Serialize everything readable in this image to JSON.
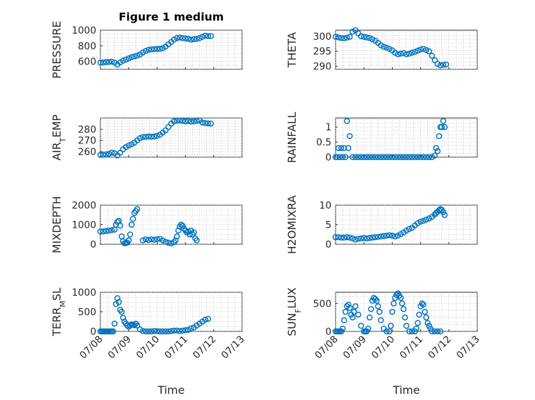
{
  "chart_data": {
    "title": "Figure 1 medium",
    "x_tick_labels": [
      "07/08",
      "07/09",
      "07/10",
      "07/11",
      "07/12",
      "07/13"
    ],
    "x_tick_values": [
      8,
      9,
      10,
      11,
      12,
      13
    ],
    "xlabel": "Time",
    "marker_color": "#0072BD",
    "panels": [
      {
        "type": "scatter",
        "ylabel": "PRESSURE",
        "ylim": [
          500,
          1000
        ],
        "yticks": [
          600,
          800,
          1000
        ],
        "grid": true,
        "x": [
          8.0,
          8.1,
          8.2,
          8.3,
          8.4,
          8.5,
          8.6,
          8.7,
          8.8,
          8.9,
          9.0,
          9.1,
          9.2,
          9.3,
          9.4,
          9.5,
          9.6,
          9.7,
          9.8,
          9.9,
          10.0,
          10.1,
          10.2,
          10.3,
          10.4,
          10.5,
          10.6,
          10.7,
          10.8,
          10.9,
          11.0,
          11.1,
          11.2,
          11.3,
          11.4,
          11.5,
          11.6,
          11.7,
          11.8,
          11.9
        ],
        "y": [
          585,
          588,
          592,
          595,
          598,
          585,
          560,
          590,
          610,
          625,
          640,
          655,
          665,
          675,
          690,
          715,
          735,
          750,
          755,
          758,
          760,
          762,
          770,
          790,
          820,
          850,
          880,
          900,
          905,
          900,
          895,
          890,
          880,
          885,
          890,
          900,
          915,
          930,
          925,
          925
        ]
      },
      {
        "type": "scatter",
        "ylabel": "THETA",
        "ylim": [
          289,
          302
        ],
        "yticks": [
          290,
          295,
          300
        ],
        "grid": true,
        "x": [
          8.0,
          8.1,
          8.2,
          8.3,
          8.4,
          8.5,
          8.6,
          8.7,
          8.8,
          8.9,
          9.0,
          9.1,
          9.2,
          9.3,
          9.4,
          9.5,
          9.6,
          9.7,
          9.8,
          9.9,
          10.0,
          10.1,
          10.2,
          10.3,
          10.4,
          10.5,
          10.6,
          10.7,
          10.8,
          10.9,
          11.0,
          11.1,
          11.2,
          11.3,
          11.4,
          11.5,
          11.6,
          11.7,
          11.8,
          11.9
        ],
        "y": [
          299.8,
          299.6,
          299.4,
          299.3,
          299.5,
          299.8,
          301.5,
          302.0,
          301.0,
          300.0,
          299.8,
          299.6,
          299.4,
          299.0,
          298.5,
          297.8,
          297.0,
          296.5,
          296.2,
          295.8,
          295.3,
          294.5,
          294.0,
          294.2,
          294.4,
          294.0,
          294.2,
          294.5,
          294.8,
          295.2,
          295.6,
          295.8,
          295.4,
          295.0,
          293.5,
          292.0,
          290.8,
          290.3,
          290.5,
          290.6
        ]
      },
      {
        "type": "scatter",
        "ylabel": "AIR_TEMP",
        "ylim": [
          255,
          290
        ],
        "yticks": [
          260,
          270,
          280
        ],
        "grid": true,
        "x": [
          8.0,
          8.1,
          8.2,
          8.3,
          8.4,
          8.5,
          8.6,
          8.7,
          8.8,
          8.9,
          9.0,
          9.1,
          9.2,
          9.3,
          9.4,
          9.5,
          9.6,
          9.7,
          9.8,
          9.9,
          10.0,
          10.1,
          10.2,
          10.3,
          10.4,
          10.5,
          10.6,
          10.7,
          10.8,
          10.9,
          11.0,
          11.1,
          11.2,
          11.3,
          11.4,
          11.5,
          11.6,
          11.7,
          11.8,
          11.9
        ],
        "y": [
          257,
          257.2,
          257.5,
          258,
          259,
          258.5,
          256.5,
          259,
          262,
          264,
          265.5,
          266.5,
          268,
          270,
          272,
          273,
          273.2,
          273.5,
          273.3,
          273.5,
          274,
          275,
          277,
          279,
          282,
          285,
          287,
          287.5,
          287.8,
          287.5,
          287,
          287.2,
          286.8,
          287,
          287.5,
          287.8,
          286,
          285.5,
          285.2,
          285
        ]
      },
      {
        "type": "scatter",
        "ylabel": "RAINFALL",
        "ylim": [
          0,
          1.3
        ],
        "yticks": [
          0,
          0.5,
          1
        ],
        "grid": true,
        "x": [
          8.0,
          8.05,
          8.1,
          8.15,
          8.2,
          8.25,
          8.3,
          8.35,
          8.4,
          8.45,
          8.5,
          8.6,
          8.7,
          8.8,
          8.9,
          9.0,
          9.1,
          9.2,
          9.3,
          9.4,
          9.5,
          9.6,
          9.7,
          9.8,
          9.9,
          10.0,
          10.1,
          10.2,
          10.3,
          10.4,
          10.5,
          10.6,
          10.7,
          10.8,
          10.9,
          11.0,
          11.1,
          11.2,
          11.3,
          11.4,
          11.5,
          11.55,
          11.6,
          11.65,
          11.7,
          11.75,
          11.8,
          11.85
        ],
        "y": [
          0,
          0,
          0.3,
          0,
          0.3,
          0,
          0.3,
          0,
          1.2,
          0.3,
          0.7,
          0,
          0,
          0,
          0,
          0,
          0,
          0,
          0,
          0,
          0,
          0,
          0,
          0,
          0,
          0,
          0,
          0,
          0,
          0,
          0,
          0,
          0,
          0,
          0,
          0,
          0,
          0,
          0,
          0,
          0.05,
          0.3,
          0.2,
          0.7,
          1.0,
          1.0,
          1.2,
          1.0
        ]
      },
      {
        "type": "scatter",
        "ylabel": "MIXDEPTH",
        "ylim": [
          0,
          2000
        ],
        "yticks": [
          0,
          1000,
          2000
        ],
        "grid": true,
        "x": [
          8.0,
          8.1,
          8.2,
          8.3,
          8.4,
          8.5,
          8.55,
          8.6,
          8.65,
          8.7,
          8.75,
          8.8,
          8.85,
          8.9,
          8.95,
          9.0,
          9.05,
          9.1,
          9.15,
          9.2,
          9.25,
          9.3,
          9.5,
          9.6,
          9.7,
          9.8,
          9.9,
          10.0,
          10.1,
          10.2,
          10.3,
          10.4,
          10.5,
          10.6,
          10.65,
          10.7,
          10.75,
          10.8,
          10.85,
          10.9,
          10.95,
          11.0,
          11.05,
          11.1,
          11.15,
          11.2,
          11.25,
          11.3,
          11.35,
          11.4
        ],
        "y": [
          650,
          660,
          680,
          700,
          720,
          750,
          1000,
          1150,
          1200,
          950,
          400,
          150,
          50,
          60,
          80,
          200,
          500,
          1000,
          1300,
          1600,
          1700,
          1800,
          200,
          250,
          220,
          250,
          230,
          260,
          280,
          200,
          120,
          80,
          50,
          100,
          200,
          400,
          700,
          900,
          1000,
          950,
          800,
          700,
          600,
          650,
          500,
          700,
          500,
          600,
          300,
          200
        ]
      },
      {
        "type": "scatter",
        "ylabel": "H2OMIXRA",
        "ylim": [
          0,
          10
        ],
        "yticks": [
          0,
          5,
          10
        ],
        "grid": true,
        "x": [
          8.0,
          8.1,
          8.2,
          8.3,
          8.4,
          8.5,
          8.6,
          8.7,
          8.8,
          8.9,
          9.0,
          9.1,
          9.2,
          9.3,
          9.4,
          9.5,
          9.6,
          9.7,
          9.8,
          9.9,
          10.0,
          10.1,
          10.2,
          10.3,
          10.4,
          10.5,
          10.6,
          10.7,
          10.8,
          10.9,
          11.0,
          11.1,
          11.2,
          11.3,
          11.4,
          11.5,
          11.55,
          11.6,
          11.65,
          11.7,
          11.75,
          11.8,
          11.85
        ],
        "y": [
          1.8,
          1.8,
          1.7,
          1.7,
          1.8,
          1.7,
          1.5,
          1.2,
          1.4,
          1.5,
          1.6,
          1.5,
          1.6,
          1.7,
          1.8,
          1.9,
          2.0,
          2.1,
          2.2,
          2.3,
          2.2,
          2.0,
          2.2,
          2.6,
          3.0,
          3.5,
          3.9,
          4.2,
          4.8,
          5.4,
          5.8,
          6.0,
          6.3,
          6.6,
          7.0,
          7.6,
          8.0,
          8.3,
          8.7,
          9.0,
          8.8,
          8.2,
          7.5
        ]
      },
      {
        "type": "scatter",
        "ylabel": "TERR_MSL",
        "ylim": [
          0,
          1000
        ],
        "yticks": [
          0,
          500,
          1000
        ],
        "grid": true,
        "x": [
          8.0,
          8.05,
          8.1,
          8.15,
          8.2,
          8.25,
          8.3,
          8.35,
          8.4,
          8.45,
          8.5,
          8.55,
          8.6,
          8.65,
          8.7,
          8.75,
          8.8,
          8.85,
          8.9,
          8.95,
          9.0,
          9.05,
          9.1,
          9.15,
          9.2,
          9.25,
          9.3,
          9.4,
          9.5,
          9.6,
          9.7,
          9.8,
          9.9,
          10.0,
          10.1,
          10.2,
          10.3,
          10.4,
          10.5,
          10.6,
          10.7,
          10.8,
          10.9,
          11.0,
          11.1,
          11.2,
          11.3,
          11.4,
          11.5,
          11.6,
          11.7,
          11.8
        ],
        "y": [
          0,
          0,
          0,
          0,
          0,
          0,
          0,
          0,
          0,
          0,
          200,
          700,
          850,
          750,
          550,
          500,
          350,
          250,
          200,
          150,
          120,
          150,
          180,
          170,
          160,
          200,
          150,
          50,
          10,
          0,
          0,
          0,
          10,
          5,
          0,
          0,
          0,
          0,
          10,
          20,
          20,
          10,
          20,
          30,
          40,
          80,
          100,
          150,
          200,
          250,
          300,
          320
        ]
      },
      {
        "type": "scatter",
        "ylabel": "SUN_FLUX",
        "ylim": [
          0,
          700
        ],
        "yticks": [
          0,
          500
        ],
        "grid": true,
        "x": [
          8.0,
          8.05,
          8.1,
          8.15,
          8.2,
          8.25,
          8.3,
          8.35,
          8.4,
          8.45,
          8.5,
          8.55,
          8.6,
          8.65,
          8.7,
          8.8,
          8.9,
          9.0,
          9.05,
          9.1,
          9.15,
          9.2,
          9.25,
          9.3,
          9.35,
          9.4,
          9.45,
          9.5,
          9.55,
          9.6,
          9.7,
          9.8,
          9.9,
          9.95,
          10.0,
          10.05,
          10.1,
          10.15,
          10.2,
          10.25,
          10.3,
          10.35,
          10.4,
          10.45,
          10.5,
          10.6,
          10.7,
          10.8,
          10.85,
          10.9,
          10.95,
          11.0,
          11.05,
          11.1,
          11.15,
          11.2,
          11.25,
          11.3,
          11.35,
          11.4,
          11.5,
          11.6,
          11.7
        ],
        "y": [
          0,
          0,
          0,
          0,
          0,
          50,
          200,
          350,
          450,
          480,
          420,
          300,
          250,
          350,
          450,
          300,
          100,
          0,
          0,
          0,
          50,
          250,
          400,
          550,
          600,
          580,
          550,
          450,
          350,
          200,
          50,
          0,
          0,
          100,
          350,
          500,
          600,
          650,
          680,
          640,
          600,
          500,
          400,
          250,
          100,
          0,
          0,
          0,
          50,
          150,
          300,
          450,
          500,
          480,
          350,
          250,
          150,
          100,
          50,
          0,
          0,
          0,
          0
        ]
      }
    ]
  }
}
